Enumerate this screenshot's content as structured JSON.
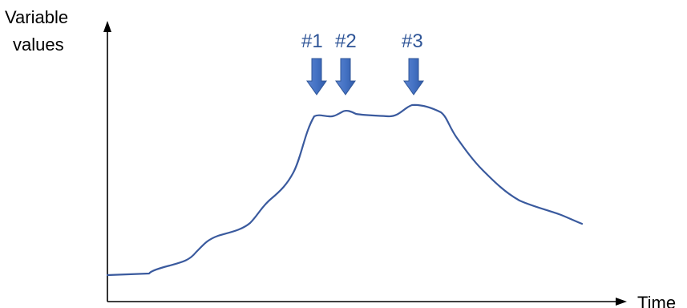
{
  "axes": {
    "y_label_line1": "Variable",
    "y_label_line2": "values",
    "x_label": "Time"
  },
  "markers": [
    {
      "label": "#1"
    },
    {
      "label": "#2"
    },
    {
      "label": "#3"
    }
  ],
  "colors": {
    "curve": "#3a5a9e",
    "marker": "#4472c4",
    "marker_text": "#2f5597",
    "axis": "#000000"
  }
}
